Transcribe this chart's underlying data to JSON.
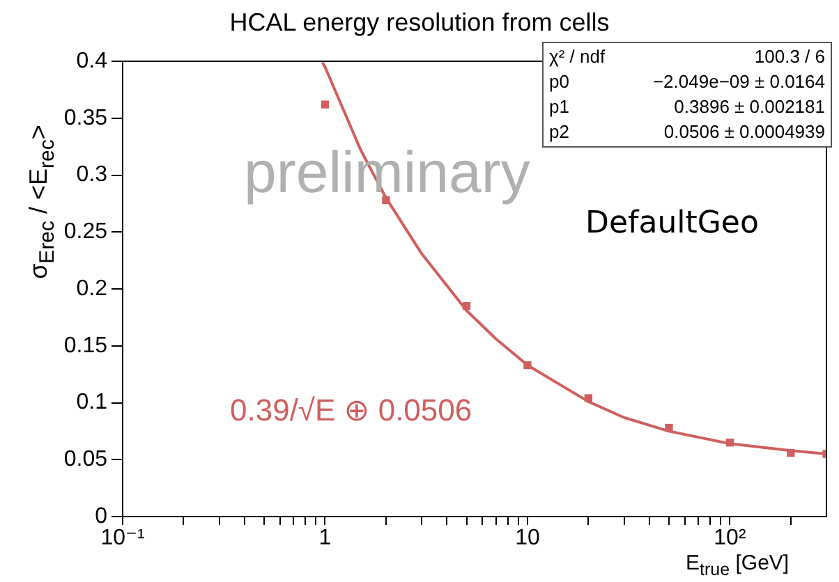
{
  "chart_data": {
    "type": "scatter",
    "title": "HCAL energy resolution from cells",
    "xlabel": "E$_{true}$ [GeV]",
    "ylabel": "σ$_{Erec}$ / <E$_{rec}$>",
    "log": "x",
    "grid": false,
    "legend": false,
    "marker": "square",
    "xlim": [
      0.1,
      300
    ],
    "ylim": [
      0,
      0.4
    ],
    "xticks": [
      {
        "value": 0.1,
        "label": "10⁻¹"
      },
      {
        "value": 0.2,
        "label": null
      },
      {
        "value": 0.3,
        "label": null
      },
      {
        "value": 0.4,
        "label": null
      },
      {
        "value": 0.5,
        "label": null
      },
      {
        "value": 0.6,
        "label": null
      },
      {
        "value": 0.7,
        "label": null
      },
      {
        "value": 0.8,
        "label": null
      },
      {
        "value": 0.9,
        "label": null
      },
      1,
      {
        "value": 2,
        "label": null
      },
      {
        "value": 3,
        "label": null
      },
      {
        "value": 4,
        "label": null
      },
      {
        "value": 5,
        "label": null
      },
      {
        "value": 6,
        "label": null
      },
      {
        "value": 7,
        "label": null
      },
      {
        "value": 8,
        "label": null
      },
      {
        "value": 9,
        "label": null
      },
      10,
      {
        "value": 20,
        "label": null
      },
      {
        "value": 30,
        "label": null
      },
      {
        "value": 40,
        "label": null
      },
      {
        "value": 50,
        "label": null
      },
      {
        "value": 60,
        "label": null
      },
      {
        "value": 70,
        "label": null
      },
      {
        "value": 80,
        "label": null
      },
      {
        "value": 90,
        "label": null
      },
      {
        "value": 100,
        "label": "10²"
      },
      {
        "value": 200,
        "label": null
      }
    ],
    "yticks": [
      0,
      0.05,
      0.1,
      0.15,
      0.2,
      0.25,
      0.3,
      0.35,
      0.4
    ],
    "series": [
      {
        "color": "#d05f5f",
        "x": [
          1,
          2,
          5,
          10,
          20,
          50,
          100,
          200,
          300
        ],
        "values": [
          0.362,
          0.278,
          0.185,
          0.133,
          0.104,
          0.078,
          0.065,
          0.056,
          0.055
        ]
      },
      {
        "type": "line",
        "color": "#d05f5f",
        "marker": "none",
        "x": [
          0.97,
          1,
          1.5,
          2,
          3,
          5,
          7,
          10,
          20,
          30,
          50,
          100,
          200,
          300
        ],
        "values": [
          0.399,
          0.395,
          0.322,
          0.28,
          0.231,
          0.181,
          0.156,
          0.133,
          0.101,
          0.087,
          0.075,
          0.064,
          0.058,
          0.055
        ]
      }
    ],
    "annotations": [
      "preliminary",
      "DefaultGeo",
      "0.39/√E ⊕ 0.0506",
      "χ² / ndf\t100.3 / 6",
      "p0\t−2.049e−09 ± 0.0164",
      "p1\t0.3896 ± 0.002181",
      "p2\t0.0506 ± 0.0004939"
    ]
  }
}
